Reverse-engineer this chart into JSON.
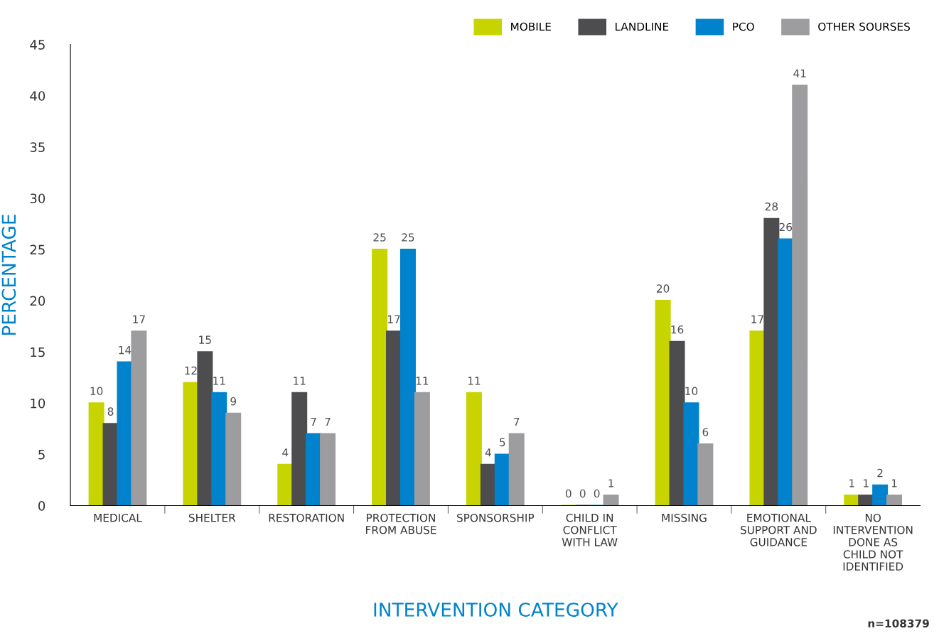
{
  "chart_data": {
    "type": "bar",
    "xlabel": "INTERVENTION CATEGORY",
    "ylabel": "PERCENTAGE",
    "categories": [
      "MEDICAL",
      "SHELTER",
      "RESTORATION",
      "PROTECTION\nFROM ABUSE",
      "SPONSORSHIP",
      "CHILD IN\nCONFLICT\nWITH LAW",
      "MISSING",
      "EMOTIONAL\nSUPPORT AND\nGUIDANCE",
      "NO\nINTERVENTION\nDONE AS\nCHILD NOT\nIDENTIFIED"
    ],
    "series": [
      {
        "name": "MOBILE",
        "color": "#c8d400",
        "values": [
          10,
          12,
          4,
          25,
          11,
          0,
          20,
          17,
          1
        ]
      },
      {
        "name": "LANDLINE",
        "color": "#4d4d4f",
        "values": [
          8,
          15,
          11,
          17,
          4,
          0,
          16,
          28,
          1
        ]
      },
      {
        "name": "PCO",
        "color": "#0083cc",
        "values": [
          14,
          11,
          7,
          25,
          5,
          0,
          10,
          26,
          2
        ]
      },
      {
        "name": "OTHER SOURSES",
        "color": "#9d9d9f",
        "values": [
          17,
          9,
          7,
          11,
          7,
          1,
          6,
          41,
          1
        ]
      }
    ],
    "ylim": [
      0,
      45
    ],
    "yticks": [
      0,
      5,
      10,
      15,
      20,
      25,
      30,
      35,
      40,
      45
    ],
    "data_labels": true,
    "legend": "top right",
    "grid": false,
    "annotations": [
      "n=108379"
    ]
  }
}
